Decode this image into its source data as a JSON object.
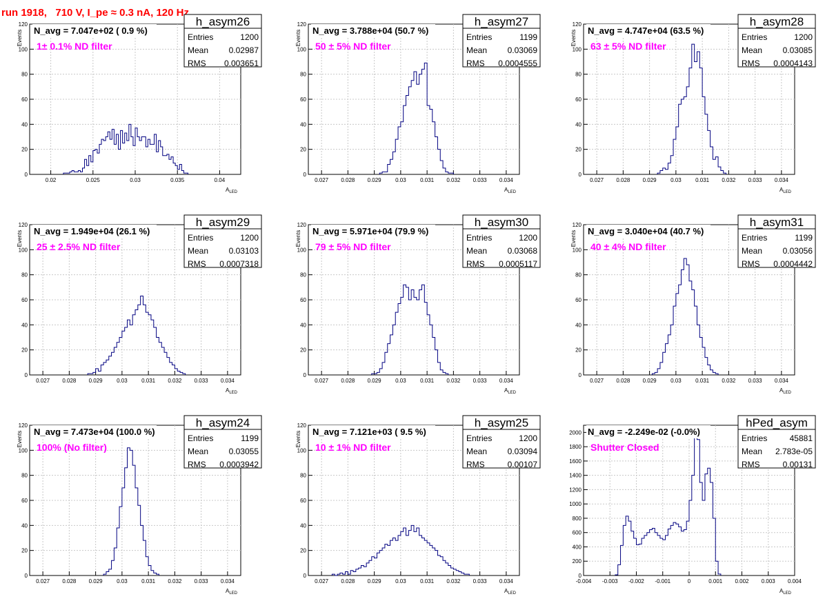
{
  "page_title": "run 1918,   710 V, I_pe ≈ 0.3 nA, 120 Hz",
  "colors": {
    "title": "#ff0000",
    "annotation": "#ff00ff",
    "histogram": "#000080",
    "grid": "#c8c8c8"
  },
  "chart_data": [
    {
      "type": "histogram",
      "name": "h_asym26",
      "navg": "N_avg = 7.047e+02 ( 0.9 %)",
      "filter": "1± 0.1% ND filter",
      "stats": {
        "entries": "1200",
        "mean": "0.02987",
        "rms": "0.003651"
      },
      "xlabel": "A",
      "xlabel_sub": "LED",
      "ylabel": "Events",
      "xlim": [
        0.0175,
        0.0425
      ],
      "ylim": [
        0,
        120
      ],
      "xticks": [
        0.02,
        0.025,
        0.03,
        0.035,
        0.04
      ],
      "xtick_labels": [
        "0.02",
        "0.025",
        "0.03",
        "0.035",
        "0.04"
      ],
      "yticks": [
        0,
        20,
        40,
        60,
        80,
        100,
        120
      ],
      "ytick_labels": [
        "0",
        "20",
        "40",
        "60",
        "80",
        "100",
        "120"
      ],
      "bins": {
        "start": 0.0215,
        "width": 0.00025,
        "counts": [
          1,
          1,
          1,
          2,
          3,
          2,
          2,
          3,
          2,
          5,
          12,
          7,
          15,
          10,
          19,
          20,
          17,
          24,
          28,
          27,
          30,
          34,
          28,
          36,
          24,
          32,
          20,
          35,
          25,
          33,
          27,
          40,
          30,
          23,
          37,
          30,
          27,
          30,
          30,
          22,
          28,
          24,
          24,
          32,
          18,
          27,
          22,
          15,
          15,
          16,
          12,
          14,
          9,
          7,
          4,
          8,
          3,
          1,
          1
        ]
      }
    },
    {
      "type": "histogram",
      "name": "h_asym27",
      "navg": "N_avg = 3.788e+04 (50.7 %)",
      "filter": "50 ± 5% ND filter",
      "stats": {
        "entries": "1199",
        "mean": "0.03069",
        "rms": "0.0004555"
      },
      "xlabel": "A",
      "xlabel_sub": "LED",
      "ylabel": "Events",
      "xlim": [
        0.0265,
        0.0345
      ],
      "ylim": [
        0,
        120
      ],
      "xticks": [
        0.027,
        0.028,
        0.029,
        0.03,
        0.031,
        0.032,
        0.033,
        0.034
      ],
      "xtick_labels": [
        "0.027",
        "0.028",
        "0.029",
        "0.03",
        "0.031",
        "0.032",
        "0.033",
        "0.034"
      ],
      "yticks": [
        0,
        20,
        40,
        60,
        80,
        100,
        120
      ],
      "ytick_labels": [
        "0",
        "20",
        "40",
        "60",
        "80",
        "100",
        "120"
      ],
      "bins": {
        "start": 0.0292,
        "width": 0.0001,
        "counts": [
          1,
          2,
          2,
          8,
          12,
          18,
          28,
          38,
          42,
          55,
          63,
          70,
          75,
          82,
          72,
          80,
          84,
          89,
          55,
          52,
          42,
          30,
          20,
          11,
          5,
          2,
          1,
          1
        ]
      }
    },
    {
      "type": "histogram",
      "name": "h_asym28",
      "navg": "N_avg = 4.747e+04 (63.5 %)",
      "filter": "63 ± 5% ND filter",
      "stats": {
        "entries": "1200",
        "mean": "0.03085",
        "rms": "0.0004143"
      },
      "xlabel": "A",
      "xlabel_sub": "LED",
      "ylabel": "Events",
      "xlim": [
        0.0265,
        0.0345
      ],
      "ylim": [
        0,
        120
      ],
      "xticks": [
        0.027,
        0.028,
        0.029,
        0.03,
        0.031,
        0.032,
        0.033,
        0.034
      ],
      "xtick_labels": [
        "0.027",
        "0.028",
        "0.029",
        "0.03",
        "0.031",
        "0.032",
        "0.033",
        "0.034"
      ],
      "yticks": [
        0,
        20,
        40,
        60,
        80,
        100,
        120
      ],
      "ytick_labels": [
        "0",
        "20",
        "40",
        "60",
        "80",
        "100",
        "120"
      ],
      "bins": {
        "start": 0.0293,
        "width": 0.0001,
        "counts": [
          1,
          3,
          5,
          4,
          9,
          15,
          28,
          38,
          56,
          60,
          62,
          70,
          85,
          104,
          90,
          98,
          85,
          62,
          48,
          35,
          22,
          12,
          14,
          6,
          3,
          1
        ]
      }
    },
    {
      "type": "histogram",
      "name": "h_asym29",
      "navg": "N_avg = 1.949e+04 (26.1 %)",
      "filter": "25 ± 2.5% ND filter",
      "stats": {
        "entries": "1200",
        "mean": "0.03103",
        "rms": "0.0007318"
      },
      "xlabel": "A",
      "xlabel_sub": "LED",
      "ylabel": "Events",
      "xlim": [
        0.0265,
        0.0345
      ],
      "ylim": [
        0,
        120
      ],
      "xticks": [
        0.027,
        0.028,
        0.029,
        0.03,
        0.031,
        0.032,
        0.033,
        0.034
      ],
      "xtick_labels": [
        "0.027",
        "0.028",
        "0.029",
        "0.03",
        "0.031",
        "0.032",
        "0.033",
        "0.034"
      ],
      "yticks": [
        0,
        20,
        40,
        60,
        80,
        100,
        120
      ],
      "ytick_labels": [
        "0",
        "20",
        "40",
        "60",
        "80",
        "100",
        "120"
      ],
      "bins": {
        "start": 0.0287,
        "width": 0.0001,
        "counts": [
          1,
          1,
          2,
          5,
          3,
          8,
          10,
          12,
          15,
          18,
          22,
          26,
          30,
          35,
          38,
          44,
          40,
          48,
          52,
          56,
          63,
          56,
          50,
          48,
          44,
          38,
          30,
          26,
          22,
          18,
          14,
          10,
          8,
          5,
          3,
          2,
          1
        ]
      }
    },
    {
      "type": "histogram",
      "name": "h_asym30",
      "navg": "N_avg = 5.971e+04 (79.9 %)",
      "filter": "79 ± 5% ND filter",
      "stats": {
        "entries": "1200",
        "mean": "0.03068",
        "rms": "0.0005117"
      },
      "xlabel": "A",
      "xlabel_sub": "LED",
      "ylabel": "Events",
      "xlim": [
        0.0265,
        0.0345
      ],
      "ylim": [
        0,
        120
      ],
      "xticks": [
        0.027,
        0.028,
        0.029,
        0.03,
        0.031,
        0.032,
        0.033,
        0.034
      ],
      "xtick_labels": [
        "0.027",
        "0.028",
        "0.029",
        "0.03",
        "0.031",
        "0.032",
        "0.033",
        "0.034"
      ],
      "yticks": [
        0,
        20,
        40,
        60,
        80,
        100,
        120
      ],
      "ytick_labels": [
        "0",
        "20",
        "40",
        "60",
        "80",
        "100",
        "120"
      ],
      "bins": {
        "start": 0.0289,
        "width": 0.0001,
        "counts": [
          1,
          1,
          2,
          5,
          10,
          18,
          25,
          32,
          40,
          50,
          57,
          62,
          72,
          70,
          60,
          68,
          62,
          60,
          68,
          72,
          58,
          48,
          40,
          30,
          20,
          10,
          4,
          2,
          1
        ]
      }
    },
    {
      "type": "histogram",
      "name": "h_asym31",
      "navg": "N_avg = 3.040e+04 (40.7 %)",
      "filter": "40 ± 4% ND filter",
      "stats": {
        "entries": "1199",
        "mean": "0.03056",
        "rms": "0.0004442"
      },
      "xlabel": "A",
      "xlabel_sub": "LED",
      "ylabel": "Events",
      "xlim": [
        0.0265,
        0.0345
      ],
      "ylim": [
        0,
        120
      ],
      "xticks": [
        0.027,
        0.028,
        0.029,
        0.03,
        0.031,
        0.032,
        0.033,
        0.034
      ],
      "xtick_labels": [
        "0.027",
        "0.028",
        "0.029",
        "0.03",
        "0.031",
        "0.032",
        "0.033",
        "0.034"
      ],
      "yticks": [
        0,
        20,
        40,
        60,
        80,
        100,
        120
      ],
      "ytick_labels": [
        "0",
        "20",
        "40",
        "60",
        "80",
        "100",
        "120"
      ],
      "bins": {
        "start": 0.0291,
        "width": 0.0001,
        "counts": [
          1,
          2,
          5,
          10,
          18,
          25,
          32,
          40,
          55,
          65,
          72,
          84,
          93,
          88,
          75,
          68,
          55,
          40,
          30,
          22,
          14,
          8,
          4,
          2,
          1
        ]
      }
    },
    {
      "type": "histogram",
      "name": "h_asym24",
      "navg": "N_avg = 7.473e+04 (100.0 %)",
      "filter": "100% (No filter)",
      "stats": {
        "entries": "1199",
        "mean": "0.03055",
        "rms": "0.0003942"
      },
      "xlabel": "A",
      "xlabel_sub": "LED",
      "ylabel": "Events",
      "xlim": [
        0.0265,
        0.0345
      ],
      "ylim": [
        0,
        120
      ],
      "xticks": [
        0.027,
        0.028,
        0.029,
        0.03,
        0.031,
        0.032,
        0.033,
        0.034
      ],
      "xtick_labels": [
        "0.027",
        "0.028",
        "0.029",
        "0.03",
        "0.031",
        "0.032",
        "0.033",
        "0.034"
      ],
      "yticks": [
        0,
        20,
        40,
        60,
        80,
        100,
        120
      ],
      "ytick_labels": [
        "0",
        "20",
        "40",
        "60",
        "80",
        "100",
        "120"
      ],
      "bins": {
        "start": 0.0293,
        "width": 0.0001,
        "counts": [
          1,
          3,
          5,
          12,
          22,
          38,
          55,
          70,
          86,
          102,
          100,
          88,
          70,
          56,
          40,
          28,
          15,
          8,
          4,
          2,
          1
        ]
      }
    },
    {
      "type": "histogram",
      "name": "h_asym25",
      "navg": "N_avg = 7.121e+03 ( 9.5 %)",
      "filter": "10 ± 1% ND filter",
      "stats": {
        "entries": "1200",
        "mean": "0.03094",
        "rms": "0.00107"
      },
      "xlabel": "A",
      "xlabel_sub": "LED",
      "ylabel": "Events",
      "xlim": [
        0.0265,
        0.0345
      ],
      "ylim": [
        0,
        120
      ],
      "xticks": [
        0.027,
        0.028,
        0.029,
        0.03,
        0.031,
        0.032,
        0.033,
        0.034
      ],
      "xtick_labels": [
        "0.027",
        "0.028",
        "0.029",
        "0.03",
        "0.031",
        "0.032",
        "0.033",
        "0.034"
      ],
      "yticks": [
        0,
        20,
        40,
        60,
        80,
        100,
        120
      ],
      "ytick_labels": [
        "0",
        "20",
        "40",
        "60",
        "80",
        "100",
        "120"
      ],
      "bins": {
        "start": 0.0274,
        "width": 0.0001,
        "counts": [
          1,
          0,
          1,
          2,
          1,
          3,
          1,
          4,
          3,
          5,
          6,
          8,
          7,
          10,
          12,
          15,
          14,
          18,
          20,
          22,
          25,
          24,
          28,
          30,
          28,
          32,
          35,
          38,
          32,
          36,
          40,
          35,
          38,
          32,
          30,
          28,
          26,
          24,
          22,
          20,
          16,
          15,
          12,
          10,
          8,
          6,
          5,
          4,
          3,
          2,
          1,
          1
        ]
      }
    },
    {
      "type": "histogram",
      "name": "hPed_asym",
      "navg": "N_avg = -2.249e-02 (-0.0%)",
      "filter": "Shutter Closed",
      "stats": {
        "entries": "45881",
        "mean": "2.783e-05",
        "rms": "0.00131"
      },
      "xlabel": "A",
      "xlabel_sub": "LED",
      "ylabel": "",
      "xlim": [
        -0.004,
        0.004
      ],
      "ylim": [
        0,
        2100
      ],
      "xticks": [
        -0.004,
        -0.003,
        -0.002,
        -0.001,
        0,
        0.001,
        0.002,
        0.003,
        0.004
      ],
      "xtick_labels": [
        "-0.004",
        "-0.003",
        "-0.002",
        "-0.001",
        "0",
        "0.001",
        "0.002",
        "0.003",
        "0.004"
      ],
      "yticks": [
        0,
        200,
        400,
        600,
        800,
        1000,
        1200,
        1400,
        1600,
        1800,
        2000
      ],
      "ytick_labels": [
        "0",
        "200",
        "400",
        "600",
        "800",
        "1000",
        "1200",
        "1400",
        "1600",
        "1800",
        "2000"
      ],
      "bins": {
        "start": -0.0028,
        "width": 0.0001,
        "counts": [
          10,
          150,
          420,
          700,
          830,
          760,
          620,
          520,
          430,
          440,
          520,
          560,
          600,
          640,
          660,
          600,
          560,
          520,
          500,
          560,
          650,
          700,
          740,
          720,
          680,
          620,
          640,
          760,
          1050,
          1400,
          1960,
          1900,
          1300,
          1050,
          1420,
          1500,
          1300,
          800,
          200,
          20
        ]
      }
    }
  ]
}
